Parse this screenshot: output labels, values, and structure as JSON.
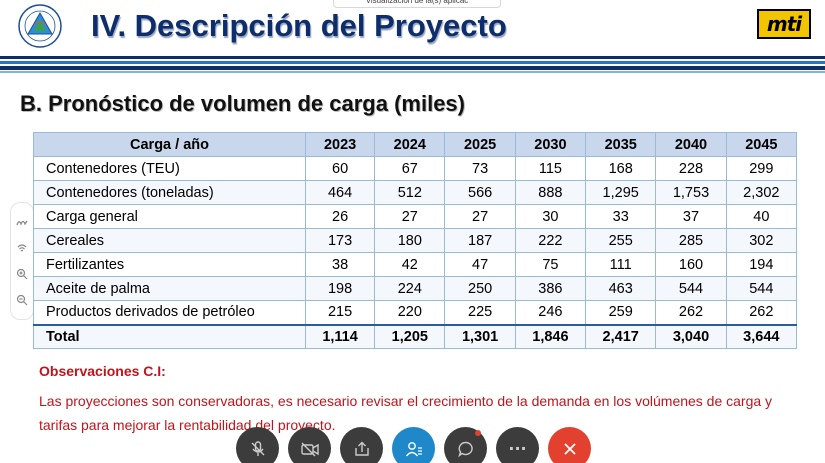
{
  "tooltip": {
    "text": "Visualización de la(s) aplicac"
  },
  "slide": {
    "title": "IV. Descripción del Proyecto",
    "subtitle": "B. Pronóstico de volumen de carga (miles)",
    "logo_right_text": "mti"
  },
  "colors": {
    "title_blue": "#0d2d6b",
    "stripe_light": "#2a74c8",
    "table_header": "#c9d7ec",
    "observation_red": "#c0141c",
    "end_call_red": "#e3412f",
    "participants_blue": "#1e88c8"
  },
  "table": {
    "headers": [
      "Carga / año",
      "2023",
      "2024",
      "2025",
      "2030",
      "2035",
      "2040",
      "2045"
    ],
    "rows": [
      {
        "label": "Contenedores (TEU)",
        "values": [
          "60",
          "67",
          "73",
          "115",
          "168",
          "228",
          "299"
        ]
      },
      {
        "label": "Contenedores (toneladas)",
        "values": [
          "464",
          "512",
          "566",
          "888",
          "1,295",
          "1,753",
          "2,302"
        ]
      },
      {
        "label": "Carga general",
        "values": [
          "26",
          "27",
          "27",
          "30",
          "33",
          "37",
          "40"
        ]
      },
      {
        "label": "Cereales",
        "values": [
          "173",
          "180",
          "187",
          "222",
          "255",
          "285",
          "302"
        ]
      },
      {
        "label": "Fertilizantes",
        "values": [
          "38",
          "42",
          "47",
          "75",
          "111",
          "160",
          "194"
        ]
      },
      {
        "label": "Aceite de palma",
        "values": [
          "198",
          "224",
          "250",
          "386",
          "463",
          "544",
          "544"
        ]
      },
      {
        "label": "Productos derivados de petróleo",
        "values": [
          "215",
          "220",
          "225",
          "246",
          "259",
          "262",
          "262"
        ]
      }
    ],
    "total": {
      "label": "Total",
      "values": [
        "1,114",
        "1,205",
        "1,301",
        "1,846",
        "2,417",
        "3,040",
        "3,644"
      ]
    }
  },
  "observations": {
    "title": "Observaciones C.I:",
    "text": "Las proyecciones son conservadoras, es necesario revisar el crecimiento de la demanda en los volúmenes de carga y tarifas para mejorar la rentabilidad del proyecto."
  },
  "side_toolbar": {
    "icons": [
      "annotate-icon",
      "pointer-icon",
      "zoom-in-icon",
      "zoom-out-icon"
    ]
  },
  "call_controls": {
    "icons": [
      "microphone-muted-icon",
      "camera-off-icon",
      "share-screen-icon",
      "participants-icon",
      "chat-icon",
      "more-icon",
      "end-call-icon"
    ],
    "more_label": "···"
  }
}
